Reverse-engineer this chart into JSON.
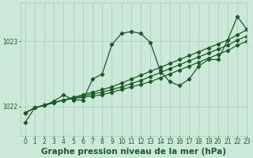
{
  "bg_color": "#cce8d8",
  "grid_color": "#aaccbb",
  "line_color": "#1a5c28",
  "title": "Graphe pression niveau de la mer (hPa)",
  "xlim": [
    -0.5,
    23
  ],
  "ylim": [
    1021.55,
    1023.6
  ],
  "yticks": [
    1022,
    1023
  ],
  "xticks": [
    0,
    1,
    2,
    3,
    4,
    5,
    6,
    7,
    8,
    9,
    10,
    11,
    12,
    13,
    14,
    15,
    16,
    17,
    18,
    19,
    20,
    21,
    22,
    23
  ],
  "series_main": [
    1021.75,
    1021.98,
    1022.02,
    1022.08,
    1022.18,
    1022.1,
    1022.1,
    1022.42,
    1022.5,
    1022.95,
    1023.12,
    1023.15,
    1023.12,
    1022.98,
    1022.55,
    1022.38,
    1022.32,
    1022.42,
    1022.62,
    1022.72,
    1022.72,
    1023.02,
    1023.38,
    1023.18
  ],
  "series_trend1": [
    1021.9,
    1021.98,
    1022.02,
    1022.06,
    1022.1,
    1022.14,
    1022.18,
    1022.22,
    1022.26,
    1022.3,
    1022.36,
    1022.42,
    1022.48,
    1022.54,
    1022.6,
    1022.66,
    1022.72,
    1022.78,
    1022.84,
    1022.9,
    1022.96,
    1023.02,
    1023.1,
    1023.18
  ],
  "series_trend2": [
    1021.9,
    1021.98,
    1022.02,
    1022.06,
    1022.1,
    1022.13,
    1022.16,
    1022.19,
    1022.22,
    1022.26,
    1022.3,
    1022.35,
    1022.4,
    1022.46,
    1022.52,
    1022.58,
    1022.64,
    1022.7,
    1022.76,
    1022.82,
    1022.88,
    1022.94,
    1023.02,
    1023.08
  ],
  "series_trend3": [
    1021.9,
    1021.98,
    1022.02,
    1022.06,
    1022.1,
    1022.12,
    1022.14,
    1022.16,
    1022.18,
    1022.22,
    1022.26,
    1022.3,
    1022.34,
    1022.38,
    1022.44,
    1022.5,
    1022.56,
    1022.62,
    1022.68,
    1022.74,
    1022.8,
    1022.86,
    1022.94,
    1023.0
  ],
  "marker": "D",
  "markersize": 2.2,
  "linewidth": 0.9,
  "title_fontsize": 7.5,
  "tick_fontsize": 5.5
}
